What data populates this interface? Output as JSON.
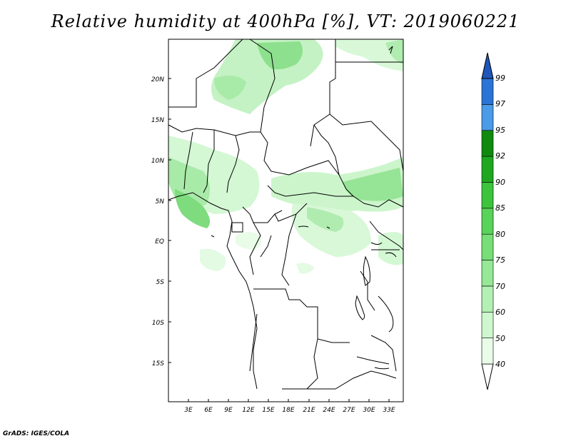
{
  "title": "Relative humidity at 400hPa [%], VT: 2019060221",
  "footer": "GrADS: IGES/COLA",
  "map": {
    "lat_labels": [
      "20N",
      "15N",
      "10N",
      "5N",
      "EQ",
      "5S",
      "10S",
      "15S"
    ],
    "lon_labels": [
      "3E",
      "6E",
      "9E",
      "12E",
      "15E",
      "18E",
      "21E",
      "24E",
      "27E",
      "30E",
      "33E"
    ]
  },
  "colorbar": {
    "levels": [
      "40",
      "50",
      "60",
      "70",
      "75",
      "80",
      "85",
      "90",
      "92",
      "95",
      "97",
      "99"
    ],
    "colors": [
      "#ffffff",
      "#e8fce8",
      "#cff7cf",
      "#b3f0b3",
      "#96e896",
      "#78de78",
      "#5ad35a",
      "#3cc43c",
      "#1fa81f",
      "#0f8a0f",
      "#4a9be8",
      "#2a74d6",
      "#1f56b8"
    ]
  }
}
